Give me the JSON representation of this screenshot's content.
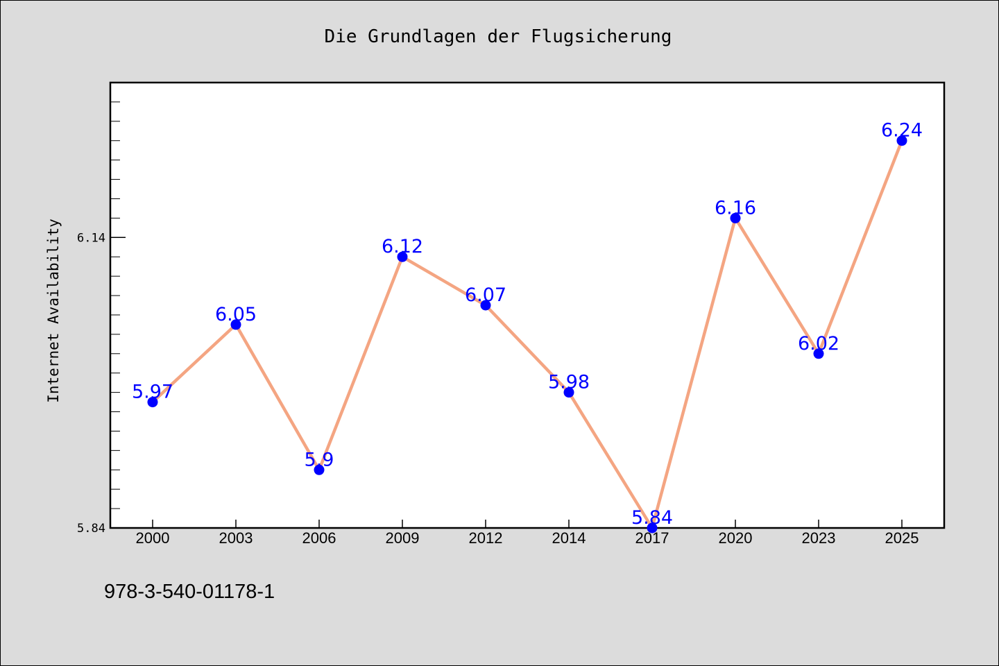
{
  "chart_data": {
    "type": "line",
    "title": "Die Grundlagen der Flugsicherung",
    "xlabel": "",
    "ylabel": "Internet Availability",
    "categories": [
      "2000",
      "2003",
      "2006",
      "2009",
      "2012",
      "2014",
      "2017",
      "2020",
      "2023",
      "2025"
    ],
    "series": [
      {
        "values": [
          5.97,
          6.05,
          5.9,
          6.12,
          6.07,
          5.98,
          5.84,
          6.16,
          6.02,
          6.24
        ]
      }
    ],
    "data_labels": [
      "5.97",
      "6.05",
      "5.9",
      "6.12",
      "6.07",
      "5.98",
      "5.84",
      "6.16",
      "6.02",
      "6.24"
    ],
    "yticks": [
      {
        "value": 5.84,
        "label": "5.84"
      },
      {
        "value": 6.14,
        "label": "6.14"
      }
    ],
    "ylim": [
      5.84,
      6.3
    ],
    "line_color": "#f4a582",
    "marker_color": "#0000ff",
    "label_color": "#0000ff",
    "grid": false,
    "legend": "none"
  },
  "footer": {
    "isbn": "978-3-540-01178-1"
  }
}
